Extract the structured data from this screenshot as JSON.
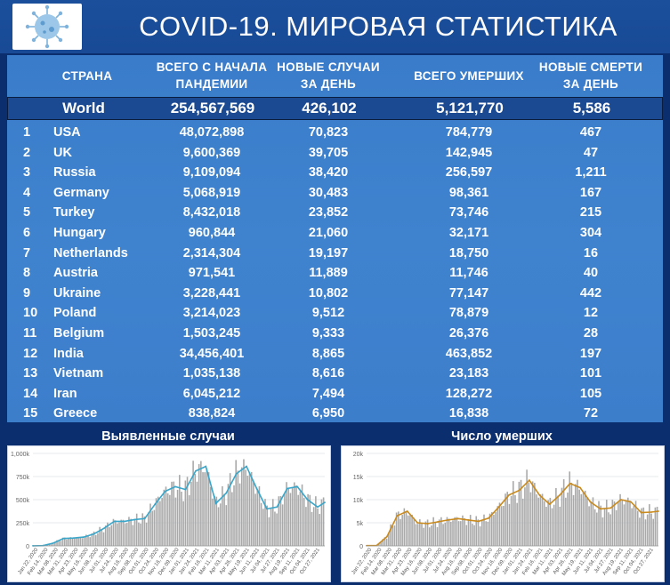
{
  "header": {
    "title": "COVID-19. МИРОВАЯ СТАТИСТИКА",
    "logo_icon": "virus-icon"
  },
  "table": {
    "headers": {
      "country": "СТРАНА",
      "total_l1": "ВСЕГО С НАЧАЛА",
      "total_l2": "ПАНДЕМИИ",
      "new_l1": "НОВЫЕ СЛУЧАИ",
      "new_l2": "ЗА ДЕНЬ",
      "deaths": "ВСЕГО УМЕРШИХ",
      "new_deaths_l1": "НОВЫЕ СМЕРТИ",
      "new_deaths_l2": "ЗА ДЕНЬ"
    },
    "world": {
      "name": "World",
      "total": "254,567,569",
      "new": "426,102",
      "deaths": "5,121,770",
      "new_deaths": "5,586"
    },
    "rows": [
      {
        "rank": "1",
        "name": "USA",
        "total": "48,072,898",
        "new": "70,823",
        "deaths": "784,779",
        "new_deaths": "467"
      },
      {
        "rank": "2",
        "name": "UK",
        "total": "9,600,369",
        "new": "39,705",
        "deaths": "142,945",
        "new_deaths": "47"
      },
      {
        "rank": "3",
        "name": "Russia",
        "total": "9,109,094",
        "new": "38,420",
        "deaths": "256,597",
        "new_deaths": "1,211"
      },
      {
        "rank": "4",
        "name": "Germany",
        "total": "5,068,919",
        "new": "30,483",
        "deaths": "98,361",
        "new_deaths": "167"
      },
      {
        "rank": "5",
        "name": "Turkey",
        "total": "8,432,018",
        "new": "23,852",
        "deaths": "73,746",
        "new_deaths": "215"
      },
      {
        "rank": "6",
        "name": "Hungary",
        "total": "960,844",
        "new": "21,060",
        "deaths": "32,171",
        "new_deaths": "304"
      },
      {
        "rank": "7",
        "name": "Netherlands",
        "total": "2,314,304",
        "new": "19,197",
        "deaths": "18,750",
        "new_deaths": "16"
      },
      {
        "rank": "8",
        "name": "Austria",
        "total": "971,541",
        "new": "11,889",
        "deaths": "11,746",
        "new_deaths": "40"
      },
      {
        "rank": "9",
        "name": "Ukraine",
        "total": "3,228,441",
        "new": "10,802",
        "deaths": "77,147",
        "new_deaths": "442"
      },
      {
        "rank": "10",
        "name": "Poland",
        "total": "3,214,023",
        "new": "9,512",
        "deaths": "78,879",
        "new_deaths": "12"
      },
      {
        "rank": "11",
        "name": "Belgium",
        "total": "1,503,245",
        "new": "9,333",
        "deaths": "26,376",
        "new_deaths": "28"
      },
      {
        "rank": "12",
        "name": "India",
        "total": "34,456,401",
        "new": "8,865",
        "deaths": "463,852",
        "new_deaths": "197"
      },
      {
        "rank": "13",
        "name": "Vietnam",
        "total": "1,035,138",
        "new": "8,616",
        "deaths": "23,183",
        "new_deaths": "101"
      },
      {
        "rank": "14",
        "name": "Iran",
        "total": "6,045,212",
        "new": "7,494",
        "deaths": "128,272",
        "new_deaths": "105"
      },
      {
        "rank": "15",
        "name": "Greece",
        "total": "838,824",
        "new": "6,950",
        "deaths": "16,838",
        "new_deaths": "72"
      }
    ]
  },
  "chart_data": [
    {
      "type": "bar",
      "title": "Выявленные случаи",
      "ylim": [
        0,
        1000000
      ],
      "y_ticks": [
        0,
        250000,
        500000,
        750000,
        1000000
      ],
      "y_tick_labels": [
        "0",
        "250k",
        "500k",
        "750k",
        "1,000k"
      ],
      "x_tick_labels": [
        "Jan 22, 2020",
        "Feb 14, 2020",
        "Mar 08, 2020",
        "Mar 31, 2020",
        "Apr 23, 2020",
        "May 16, 2020",
        "Jun 08, 2020",
        "Jul 01, 2020",
        "Jul 24, 2020",
        "Aug 16, 2020",
        "Sep 08, 2020",
        "Oct 01, 2020",
        "Oct 24, 2020",
        "Nov 16, 2020",
        "Dec 09, 2020",
        "Jan 01, 2021",
        "Jan 24, 2021",
        "Feb 16, 2021",
        "Mar 11, 2021",
        "Apr 03, 2021",
        "Apr 26, 2021",
        "May 19, 2021",
        "Jun 11, 2021",
        "Jul 04, 2021",
        "Jul 27, 2021",
        "Aug 19, 2021",
        "Sep 11, 2021",
        "Oct 04, 2021",
        "Oct 27, 2021"
      ],
      "series": [
        {
          "kind": "bars+line",
          "bar_color": "#a9a9a9",
          "line_color": "#3aa6c9",
          "x": [
            "2020-01-22",
            "2020-02-14",
            "2020-03-08",
            "2020-03-31",
            "2020-04-23",
            "2020-05-16",
            "2020-06-08",
            "2020-07-01",
            "2020-07-24",
            "2020-08-16",
            "2020-09-08",
            "2020-10-01",
            "2020-10-24",
            "2020-11-16",
            "2020-12-09",
            "2021-01-01",
            "2021-01-24",
            "2021-02-16",
            "2021-03-11",
            "2021-04-03",
            "2021-04-26",
            "2021-05-19",
            "2021-06-11",
            "2021-07-04",
            "2021-07-27",
            "2021-08-19",
            "2021-09-11",
            "2021-10-04",
            "2021-10-27",
            "2021-11-12"
          ],
          "values": [
            1000,
            3000,
            30000,
            80000,
            85000,
            95000,
            130000,
            190000,
            265000,
            265000,
            285000,
            295000,
            450000,
            590000,
            640000,
            610000,
            810000,
            860000,
            460000,
            570000,
            780000,
            860000,
            620000,
            400000,
            420000,
            620000,
            640000,
            500000,
            420000,
            470000
          ]
        }
      ]
    },
    {
      "type": "bar",
      "title": "Число умерших",
      "ylim": [
        0,
        20000
      ],
      "y_ticks": [
        0,
        5000,
        10000,
        15000,
        20000
      ],
      "y_tick_labels": [
        "0",
        "5k",
        "10k",
        "15k",
        "20k"
      ],
      "x_tick_labels": [
        "Jan 22, 2020",
        "Feb 14, 2020",
        "Mar 08, 2020",
        "Mar 31, 2020",
        "Apr 23, 2020",
        "May 16, 2020",
        "Jun 08, 2020",
        "Jul 01, 2020",
        "Jul 24, 2020",
        "Aug 16, 2020",
        "Sep 08, 2020",
        "Oct 01, 2020",
        "Oct 24, 2020",
        "Nov 16, 2020",
        "Dec 09, 2020",
        "Jan 01, 2021",
        "Jan 24, 2021",
        "Feb 16, 2021",
        "Mar 11, 2021",
        "Apr 03, 2021",
        "Apr 26, 2021",
        "May 19, 2021",
        "Jun 11, 2021",
        "Jul 04, 2021",
        "Jul 27, 2021",
        "Aug 19, 2021",
        "Sep 11, 2021",
        "Oct 04, 2021",
        "Oct 27, 2021"
      ],
      "series": [
        {
          "kind": "bars+line",
          "bar_color": "#a9a9a9",
          "line_color": "#c98a1e",
          "x": [
            "2020-01-22",
            "2020-02-14",
            "2020-03-08",
            "2020-03-31",
            "2020-04-23",
            "2020-05-16",
            "2020-06-08",
            "2020-07-01",
            "2020-07-24",
            "2020-08-16",
            "2020-09-08",
            "2020-10-01",
            "2020-10-24",
            "2020-11-16",
            "2020-12-09",
            "2021-01-01",
            "2021-01-24",
            "2021-02-16",
            "2021-03-11",
            "2021-04-03",
            "2021-04-26",
            "2021-05-19",
            "2021-06-11",
            "2021-07-04",
            "2021-07-27",
            "2021-08-19",
            "2021-09-11",
            "2021-10-04",
            "2021-10-27",
            "2021-11-12"
          ],
          "values": [
            50,
            100,
            2000,
            6500,
            7500,
            5000,
            4800,
            5200,
            5600,
            5900,
            5600,
            5300,
            6000,
            8400,
            11000,
            12000,
            14200,
            11000,
            9000,
            11000,
            13500,
            12600,
            9500,
            8000,
            8200,
            10000,
            9500,
            7200,
            7300,
            7500
          ]
        }
      ]
    }
  ]
}
